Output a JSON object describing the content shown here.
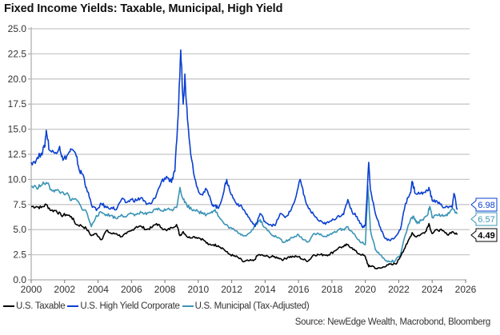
{
  "chart_data": {
    "type": "line",
    "title": "Fixed Income Yields: Taxable, Municipal, High Yield",
    "xlabel": "",
    "ylabel": "",
    "xlim": [
      2000,
      2026
    ],
    "ylim": [
      0,
      25
    ],
    "grid": true,
    "x_ticks": [
      "2000",
      "2002",
      "2004",
      "2006",
      "2008",
      "2010",
      "2012",
      "2014",
      "2016",
      "2018",
      "2020",
      "2022",
      "2024",
      "2026"
    ],
    "y_ticks": [
      "0.0",
      "2.5",
      "5.0",
      "7.5",
      "10.0",
      "12.5",
      "15.0",
      "17.5",
      "20.0",
      "22.5",
      "25.0"
    ],
    "legend_position": "bottom-left",
    "source": "Source: NewEdge Wealth, Macrobond, Bloomberg",
    "series": [
      {
        "name": "U.S. Taxable",
        "color": "#000000",
        "last_value": "4.49",
        "points": [
          [
            2000.0,
            7.3
          ],
          [
            2000.3,
            7.3
          ],
          [
            2000.6,
            7.2
          ],
          [
            2000.9,
            7.5
          ],
          [
            2001.2,
            6.9
          ],
          [
            2001.5,
            6.9
          ],
          [
            2001.8,
            6.4
          ],
          [
            2002.1,
            6.5
          ],
          [
            2002.4,
            6.3
          ],
          [
            2002.7,
            5.5
          ],
          [
            2003.0,
            5.4
          ],
          [
            2003.3,
            5.1
          ],
          [
            2003.6,
            4.4
          ],
          [
            2003.9,
            4.6
          ],
          [
            2004.2,
            4.0
          ],
          [
            2004.5,
            4.9
          ],
          [
            2004.8,
            4.6
          ],
          [
            2005.1,
            4.6
          ],
          [
            2005.4,
            4.3
          ],
          [
            2005.7,
            4.6
          ],
          [
            2006.0,
            4.9
          ],
          [
            2006.3,
            5.3
          ],
          [
            2006.6,
            5.3
          ],
          [
            2006.9,
            5.0
          ],
          [
            2007.2,
            5.2
          ],
          [
            2007.5,
            5.6
          ],
          [
            2007.8,
            5.2
          ],
          [
            2008.1,
            4.9
          ],
          [
            2008.4,
            5.2
          ],
          [
            2008.7,
            5.5
          ],
          [
            2008.9,
            4.4
          ],
          [
            2009.1,
            4.8
          ],
          [
            2009.4,
            4.2
          ],
          [
            2009.7,
            4.3
          ],
          [
            2010.0,
            4.2
          ],
          [
            2010.3,
            4.0
          ],
          [
            2010.6,
            3.5
          ],
          [
            2010.9,
            3.5
          ],
          [
            2011.2,
            3.4
          ],
          [
            2011.5,
            3.1
          ],
          [
            2011.8,
            2.6
          ],
          [
            2012.1,
            2.4
          ],
          [
            2012.4,
            2.2
          ],
          [
            2012.7,
            1.8
          ],
          [
            2013.0,
            1.9
          ],
          [
            2013.3,
            1.9
          ],
          [
            2013.6,
            2.5
          ],
          [
            2013.9,
            2.4
          ],
          [
            2014.2,
            2.3
          ],
          [
            2014.5,
            2.3
          ],
          [
            2014.8,
            2.2
          ],
          [
            2015.1,
            2.0
          ],
          [
            2015.4,
            2.3
          ],
          [
            2015.7,
            2.3
          ],
          [
            2016.0,
            2.3
          ],
          [
            2016.3,
            2.0
          ],
          [
            2016.6,
            1.9
          ],
          [
            2016.9,
            2.5
          ],
          [
            2017.2,
            2.5
          ],
          [
            2017.5,
            2.5
          ],
          [
            2017.8,
            2.5
          ],
          [
            2018.1,
            2.8
          ],
          [
            2018.4,
            3.2
          ],
          [
            2018.7,
            3.3
          ],
          [
            2018.9,
            3.5
          ],
          [
            2019.2,
            3.2
          ],
          [
            2019.5,
            2.7
          ],
          [
            2019.8,
            2.5
          ],
          [
            2020.0,
            2.3
          ],
          [
            2020.2,
            1.3
          ],
          [
            2020.4,
            1.4
          ],
          [
            2020.7,
            1.1
          ],
          [
            2021.0,
            1.2
          ],
          [
            2021.3,
            1.5
          ],
          [
            2021.6,
            1.5
          ],
          [
            2021.9,
            1.7
          ],
          [
            2022.2,
            2.7
          ],
          [
            2022.5,
            3.6
          ],
          [
            2022.8,
            4.7
          ],
          [
            2023.0,
            4.3
          ],
          [
            2023.3,
            4.5
          ],
          [
            2023.6,
            4.8
          ],
          [
            2023.8,
            5.6
          ],
          [
            2024.0,
            4.6
          ],
          [
            2024.3,
            5.0
          ],
          [
            2024.6,
            4.9
          ],
          [
            2024.9,
            4.5
          ],
          [
            2025.2,
            4.8
          ],
          [
            2025.5,
            4.49
          ]
        ]
      },
      {
        "name": "U.S. High Yield Corporate",
        "color": "#0A3FD0",
        "last_value": "6.98",
        "points": [
          [
            2000.0,
            11.7
          ],
          [
            2000.3,
            11.9
          ],
          [
            2000.6,
            12.6
          ],
          [
            2000.8,
            13.2
          ],
          [
            2000.9,
            14.9
          ],
          [
            2001.1,
            12.9
          ],
          [
            2001.4,
            12.6
          ],
          [
            2001.7,
            13.3
          ],
          [
            2001.9,
            11.9
          ],
          [
            2002.2,
            12.5
          ],
          [
            2002.4,
            13.0
          ],
          [
            2002.7,
            12.3
          ],
          [
            2002.9,
            10.8
          ],
          [
            2003.1,
            10.5
          ],
          [
            2003.3,
            9.2
          ],
          [
            2003.6,
            7.5
          ],
          [
            2003.9,
            6.9
          ],
          [
            2004.2,
            7.6
          ],
          [
            2004.5,
            7.2
          ],
          [
            2004.8,
            7.2
          ],
          [
            2005.1,
            7.0
          ],
          [
            2005.4,
            8.0
          ],
          [
            2005.7,
            7.7
          ],
          [
            2006.0,
            8.0
          ],
          [
            2006.3,
            7.9
          ],
          [
            2006.6,
            8.2
          ],
          [
            2006.9,
            7.5
          ],
          [
            2007.2,
            7.6
          ],
          [
            2007.5,
            8.5
          ],
          [
            2007.8,
            9.8
          ],
          [
            2008.1,
            10.3
          ],
          [
            2008.4,
            9.7
          ],
          [
            2008.6,
            10.8
          ],
          [
            2008.8,
            16.5
          ],
          [
            2008.95,
            22.9
          ],
          [
            2009.1,
            17.5
          ],
          [
            2009.2,
            20.5
          ],
          [
            2009.35,
            16.0
          ],
          [
            2009.6,
            12.0
          ],
          [
            2009.9,
            9.3
          ],
          [
            2010.2,
            8.5
          ],
          [
            2010.5,
            9.0
          ],
          [
            2010.8,
            7.6
          ],
          [
            2011.0,
            7.4
          ],
          [
            2011.2,
            7.1
          ],
          [
            2011.5,
            8.6
          ],
          [
            2011.7,
            10.0
          ],
          [
            2011.9,
            8.8
          ],
          [
            2012.2,
            7.8
          ],
          [
            2012.5,
            7.4
          ],
          [
            2012.8,
            6.8
          ],
          [
            2013.1,
            6.0
          ],
          [
            2013.4,
            5.3
          ],
          [
            2013.7,
            6.6
          ],
          [
            2014.0,
            5.8
          ],
          [
            2014.3,
            5.5
          ],
          [
            2014.6,
            5.4
          ],
          [
            2014.9,
            6.6
          ],
          [
            2015.2,
            6.2
          ],
          [
            2015.5,
            6.8
          ],
          [
            2015.8,
            8.0
          ],
          [
            2016.1,
            10.0
          ],
          [
            2016.3,
            8.5
          ],
          [
            2016.6,
            7.1
          ],
          [
            2016.9,
            6.5
          ],
          [
            2017.2,
            5.9
          ],
          [
            2017.5,
            5.6
          ],
          [
            2017.8,
            5.7
          ],
          [
            2018.1,
            6.0
          ],
          [
            2018.4,
            6.4
          ],
          [
            2018.7,
            6.5
          ],
          [
            2018.95,
            8.0
          ],
          [
            2019.2,
            6.8
          ],
          [
            2019.5,
            6.3
          ],
          [
            2019.8,
            5.3
          ],
          [
            2020.0,
            5.4
          ],
          [
            2020.2,
            11.7
          ],
          [
            2020.3,
            9.0
          ],
          [
            2020.6,
            6.6
          ],
          [
            2020.9,
            5.2
          ],
          [
            2021.2,
            4.1
          ],
          [
            2021.5,
            3.9
          ],
          [
            2021.8,
            4.3
          ],
          [
            2022.1,
            5.0
          ],
          [
            2022.4,
            7.6
          ],
          [
            2022.7,
            8.7
          ],
          [
            2022.8,
            9.8
          ],
          [
            2023.0,
            8.6
          ],
          [
            2023.3,
            8.6
          ],
          [
            2023.6,
            8.7
          ],
          [
            2023.8,
            9.2
          ],
          [
            2024.0,
            7.9
          ],
          [
            2024.3,
            7.8
          ],
          [
            2024.6,
            7.3
          ],
          [
            2024.9,
            7.3
          ],
          [
            2025.2,
            7.2
          ],
          [
            2025.3,
            8.6
          ],
          [
            2025.5,
            6.98
          ]
        ]
      },
      {
        "name": "U.S. Municipal (Tax-Adjusted)",
        "color": "#3A94B6",
        "last_value": "6.57",
        "points": [
          [
            2000.0,
            9.3
          ],
          [
            2000.3,
            9.2
          ],
          [
            2000.6,
            9.4
          ],
          [
            2000.9,
            9.7
          ],
          [
            2001.2,
            9.0
          ],
          [
            2001.5,
            8.9
          ],
          [
            2001.8,
            8.7
          ],
          [
            2002.1,
            8.6
          ],
          [
            2002.4,
            7.9
          ],
          [
            2002.7,
            8.0
          ],
          [
            2003.0,
            7.2
          ],
          [
            2003.3,
            6.8
          ],
          [
            2003.6,
            5.3
          ],
          [
            2003.9,
            6.4
          ],
          [
            2004.2,
            6.7
          ],
          [
            2004.5,
            6.5
          ],
          [
            2004.8,
            6.4
          ],
          [
            2005.1,
            6.1
          ],
          [
            2005.4,
            6.5
          ],
          [
            2005.7,
            6.3
          ],
          [
            2006.0,
            6.6
          ],
          [
            2006.3,
            6.5
          ],
          [
            2006.6,
            6.7
          ],
          [
            2006.9,
            6.5
          ],
          [
            2007.2,
            6.7
          ],
          [
            2007.5,
            7.1
          ],
          [
            2007.8,
            6.9
          ],
          [
            2008.1,
            7.0
          ],
          [
            2008.4,
            7.0
          ],
          [
            2008.7,
            7.2
          ],
          [
            2008.9,
            9.2
          ],
          [
            2009.1,
            8.0
          ],
          [
            2009.3,
            7.5
          ],
          [
            2009.6,
            7.0
          ],
          [
            2009.9,
            7.0
          ],
          [
            2010.2,
            6.6
          ],
          [
            2010.5,
            6.5
          ],
          [
            2010.8,
            6.8
          ],
          [
            2011.0,
            7.0
          ],
          [
            2011.3,
            6.1
          ],
          [
            2011.6,
            5.5
          ],
          [
            2011.9,
            5.2
          ],
          [
            2012.2,
            4.9
          ],
          [
            2012.5,
            4.6
          ],
          [
            2012.8,
            4.4
          ],
          [
            2013.1,
            4.7
          ],
          [
            2013.4,
            5.4
          ],
          [
            2013.7,
            6.0
          ],
          [
            2013.9,
            5.3
          ],
          [
            2014.2,
            4.9
          ],
          [
            2014.5,
            4.4
          ],
          [
            2014.8,
            4.2
          ],
          [
            2015.1,
            3.7
          ],
          [
            2015.4,
            4.0
          ],
          [
            2015.7,
            4.2
          ],
          [
            2016.0,
            4.5
          ],
          [
            2016.3,
            4.0
          ],
          [
            2016.6,
            3.8
          ],
          [
            2016.9,
            4.6
          ],
          [
            2017.2,
            4.6
          ],
          [
            2017.5,
            4.3
          ],
          [
            2017.8,
            4.4
          ],
          [
            2018.1,
            4.7
          ],
          [
            2018.4,
            5.0
          ],
          [
            2018.7,
            5.0
          ],
          [
            2018.9,
            5.3
          ],
          [
            2019.2,
            4.8
          ],
          [
            2019.5,
            4.1
          ],
          [
            2019.8,
            3.7
          ],
          [
            2020.0,
            3.5
          ],
          [
            2020.15,
            9.4
          ],
          [
            2020.3,
            5.0
          ],
          [
            2020.6,
            3.0
          ],
          [
            2020.9,
            2.5
          ],
          [
            2021.2,
            1.9
          ],
          [
            2021.5,
            1.8
          ],
          [
            2021.8,
            1.9
          ],
          [
            2022.1,
            2.5
          ],
          [
            2022.4,
            4.5
          ],
          [
            2022.7,
            6.0
          ],
          [
            2022.9,
            6.3
          ],
          [
            2023.1,
            5.6
          ],
          [
            2023.4,
            6.0
          ],
          [
            2023.7,
            6.4
          ],
          [
            2023.85,
            7.3
          ],
          [
            2024.0,
            6.2
          ],
          [
            2024.3,
            6.4
          ],
          [
            2024.6,
            6.5
          ],
          [
            2024.9,
            6.4
          ],
          [
            2025.2,
            7.1
          ],
          [
            2025.5,
            6.57
          ]
        ]
      }
    ]
  }
}
